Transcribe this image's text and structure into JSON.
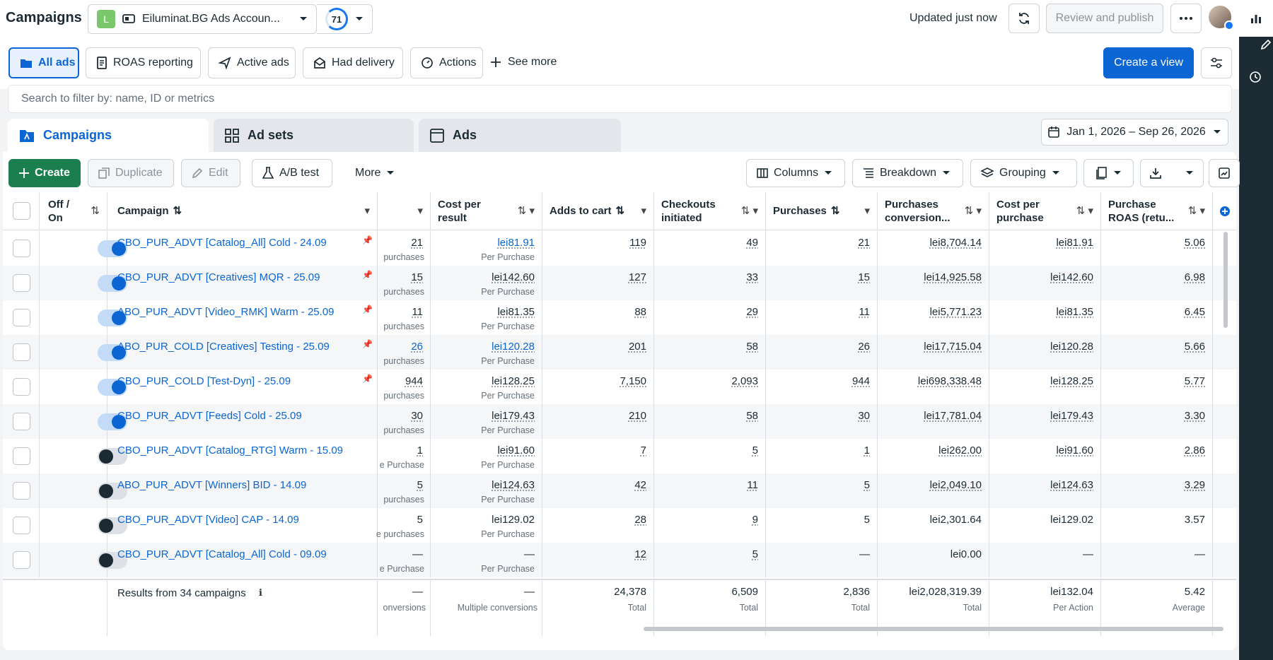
{
  "topbar": {
    "title": "Campaigns",
    "account_badge": "L",
    "account_name": "Eiluminat.BG Ads Accoun...",
    "score": "71",
    "updated": "Updated just now",
    "review_publish": "Review and publish"
  },
  "views": {
    "items": [
      "All ads",
      "ROAS reporting",
      "Active ads",
      "Had delivery",
      "Actions"
    ],
    "see_more": "See more",
    "create_view": "Create a view"
  },
  "search": {
    "placeholder": "Search to filter by: name, ID or metrics"
  },
  "level_tabs": [
    "Campaigns",
    "Ad sets",
    "Ads"
  ],
  "date_range": "Jan 1, 2026 – Sep 26, 2026",
  "toolbar": {
    "create": "Create",
    "duplicate": "Duplicate",
    "edit": "Edit",
    "ab_test": "A/B test",
    "more": "More",
    "columns": "Columns",
    "breakdown": "Breakdown",
    "grouping": "Grouping"
  },
  "headers": {
    "offon_1": "Off /",
    "offon_2": "On",
    "campaign": "Campaign",
    "cost_result_1": "Cost per",
    "cost_result_2": "result",
    "adds_to_cart": "Adds to cart",
    "checkouts_1": "Checkouts",
    "checkouts_2": "initiated",
    "purchases": "Purchases",
    "conv_1": "Purchases",
    "conv_2": "conversion...",
    "cpp_1": "Cost per",
    "cpp_2": "purchase",
    "roas_1": "Purchase",
    "roas_2": "ROAS (retu..."
  },
  "rows": [
    {
      "on": true,
      "name": "CBO_PUR_ADVT [Catalog_All] Cold - 24.09",
      "results": "21",
      "results_sub": "purchases",
      "cpr": "lei81.91",
      "cpr_sub": "Per Purchase",
      "atc": "119",
      "chk": "49",
      "pur": "21",
      "conv": "lei8,704.14",
      "cpp": "lei81.91",
      "roas": "5.06"
    },
    {
      "on": true,
      "name": "CBO_PUR_ADVT [Creatives] MQR - 25.09",
      "results": "15",
      "results_sub": "purchases",
      "cpr": "lei142.60",
      "cpr_sub": "Per Purchase",
      "atc": "127",
      "chk": "33",
      "pur": "15",
      "conv": "lei14,925.58",
      "cpp": "lei142.60",
      "roas": "6.98"
    },
    {
      "on": true,
      "name": "ABO_PUR_ADVT [Video_RMK] Warm - 25.09",
      "results": "11",
      "results_sub": "purchases",
      "cpr": "lei81.35",
      "cpr_sub": "Per Purchase",
      "atc": "88",
      "chk": "29",
      "pur": "11",
      "conv": "lei5,771.23",
      "cpp": "lei81.35",
      "roas": "6.45"
    },
    {
      "on": true,
      "name": "ABO_PUR_COLD [Creatives] Testing - 25.09",
      "results": "26",
      "results_sub": "purchases",
      "cpr": "lei120.28",
      "cpr_sub": "Per Purchase",
      "atc": "201",
      "chk": "58",
      "pur": "26",
      "conv": "lei17,715.04",
      "cpp": "lei120.28",
      "roas": "5.66"
    },
    {
      "on": true,
      "name": "CBO_PUR_COLD [Test-Dyn] - 25.09",
      "results": "944",
      "results_sub": "purchases",
      "cpr": "lei128.25",
      "cpr_sub": "Per Purchase",
      "atc": "7,150",
      "chk": "2,093",
      "pur": "944",
      "conv": "lei698,338.48",
      "cpp": "lei128.25",
      "roas": "5.77"
    },
    {
      "on": true,
      "name": "CBO_PUR_ADVT [Feeds] Cold - 25.09",
      "results": "30",
      "results_sub": "purchases",
      "cpr": "lei179.43",
      "cpr_sub": "Per Purchase",
      "atc": "210",
      "chk": "58",
      "pur": "30",
      "conv": "lei17,781.04",
      "cpp": "lei179.43",
      "roas": "3.30"
    },
    {
      "on": false,
      "name": "CBO_PUR_ADVT [Catalog_RTG] Warm - 15.09",
      "results": "1",
      "results_sub": "e Purchase",
      "cpr": "lei91.60",
      "cpr_sub": "Per Purchase",
      "atc": "7",
      "chk": "5",
      "pur": "1",
      "conv": "lei262.00",
      "cpp": "lei91.60",
      "roas": "2.86"
    },
    {
      "on": false,
      "name": "ABO_PUR_ADVT [Winners] BID - 14.09",
      "results": "5",
      "results_sub": "purchases",
      "cpr": "lei124.63",
      "cpr_sub": "Per Purchase",
      "atc": "42",
      "chk": "11",
      "pur": "5",
      "conv": "lei2,049.10",
      "cpp": "lei124.63",
      "roas": "3.29"
    },
    {
      "on": false,
      "name": "CBO_PUR_ADVT [Video] CAP - 14.09",
      "results": "5",
      "results_sub": "e purchases",
      "cpr": "lei129.02",
      "cpr_sub": "Per Purchase",
      "atc": "28",
      "chk": "9",
      "pur": "5",
      "conv": "lei2,301.64",
      "cpp": "lei129.02",
      "roas": "3.57"
    },
    {
      "on": false,
      "name": "CBO_PUR_ADVT [Catalog_All] Cold - 09.09",
      "results": "—",
      "results_sub": "e Purchase",
      "cpr": "—",
      "cpr_sub": "Per Purchase",
      "atc": "12",
      "chk": "5",
      "pur": "—",
      "conv": "lei0.00",
      "cpp": "—",
      "roas": "—"
    }
  ],
  "totals": {
    "label": "Results from 34 campaigns",
    "results": "—",
    "results_sub": "onversions",
    "cpr": "—",
    "cpr_sub": "Multiple conversions",
    "atc": "24,378",
    "atc_sub": "Total",
    "chk": "6,509",
    "chk_sub": "Total",
    "pur": "2,836",
    "pur_sub": "Total",
    "conv": "lei2,028,319.39",
    "conv_sub": "Total",
    "cpp": "lei132.04",
    "cpp_sub": "Per Action",
    "roas": "5.42",
    "roas_sub": "Average"
  },
  "colors": {
    "accent": "#0b66d3",
    "create_green": "#1a7e4e",
    "rail": "#1c2b33"
  }
}
